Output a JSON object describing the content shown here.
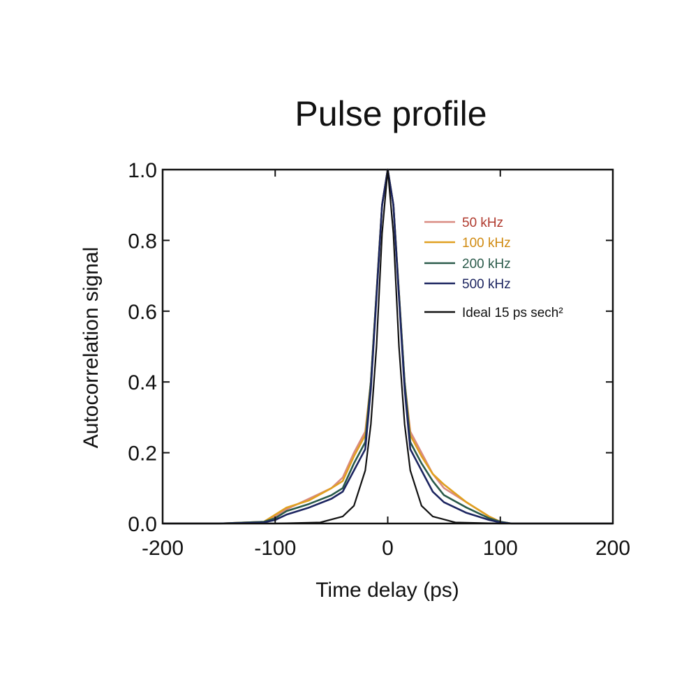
{
  "chart_data": {
    "type": "line",
    "title": "Pulse profile",
    "xlabel": "Time delay (ps)",
    "ylabel": "Autocorrelation signal",
    "xlim": [
      -200,
      200
    ],
    "ylim": [
      0,
      1.0
    ],
    "xticks": [
      -200,
      -100,
      0,
      100,
      200
    ],
    "xtick_labels": [
      "-200",
      "-100",
      "0",
      "100",
      "200"
    ],
    "yticks": [
      0,
      0.2,
      0.4,
      0.6,
      0.8,
      1.0
    ],
    "ytick_labels": [
      "0.0",
      "0.2",
      "0.4",
      "0.6",
      "0.8",
      "1.0"
    ],
    "grid": false,
    "legend_position": "top-right",
    "series": [
      {
        "name": "50 kHz",
        "color": "#d98a80",
        "label_color": "#b03a2e",
        "x": [
          -200,
          -150,
          -110,
          -100,
          -90,
          -70,
          -50,
          -40,
          -30,
          -25,
          -20,
          -15,
          -10,
          -5,
          0,
          5,
          10,
          15,
          20,
          25,
          30,
          40,
          50,
          70,
          90,
          100,
          110,
          150,
          200
        ],
        "y": [
          0.0,
          0.0,
          0.005,
          0.02,
          0.04,
          0.07,
          0.1,
          0.13,
          0.2,
          0.23,
          0.26,
          0.4,
          0.65,
          0.9,
          1.0,
          0.9,
          0.65,
          0.4,
          0.26,
          0.23,
          0.2,
          0.14,
          0.1,
          0.06,
          0.02,
          0.005,
          0.0,
          0.0,
          0.0
        ]
      },
      {
        "name": "100 kHz",
        "color": "#e0a020",
        "label_color": "#d08a10",
        "x": [
          -200,
          -150,
          -110,
          -100,
          -90,
          -70,
          -50,
          -40,
          -30,
          -25,
          -20,
          -15,
          -10,
          -5,
          0,
          5,
          10,
          15,
          20,
          25,
          30,
          40,
          50,
          70,
          90,
          100,
          110,
          150,
          200
        ],
        "y": [
          0.0,
          0.0,
          0.005,
          0.025,
          0.045,
          0.065,
          0.1,
          0.12,
          0.19,
          0.22,
          0.25,
          0.4,
          0.65,
          0.9,
          1.0,
          0.9,
          0.65,
          0.4,
          0.25,
          0.22,
          0.19,
          0.14,
          0.11,
          0.06,
          0.02,
          0.005,
          0.0,
          0.0,
          0.0
        ]
      },
      {
        "name": "200 kHz",
        "color": "#2a5a4a",
        "label_color": "#2a5a4a",
        "x": [
          -200,
          -150,
          -110,
          -100,
          -90,
          -70,
          -50,
          -40,
          -30,
          -25,
          -20,
          -15,
          -10,
          -5,
          0,
          5,
          10,
          15,
          20,
          25,
          30,
          40,
          50,
          70,
          90,
          100,
          110,
          150,
          200
        ],
        "y": [
          0.0,
          0.0,
          0.005,
          0.015,
          0.035,
          0.055,
          0.08,
          0.1,
          0.17,
          0.2,
          0.23,
          0.4,
          0.65,
          0.9,
          1.0,
          0.9,
          0.65,
          0.4,
          0.23,
          0.2,
          0.17,
          0.12,
          0.08,
          0.045,
          0.015,
          0.005,
          0.0,
          0.0,
          0.0
        ]
      },
      {
        "name": "500 kHz",
        "color": "#1c2560",
        "label_color": "#1c2560",
        "x": [
          -200,
          -150,
          -110,
          -100,
          -90,
          -70,
          -50,
          -40,
          -30,
          -25,
          -20,
          -15,
          -10,
          -5,
          0,
          5,
          10,
          15,
          20,
          25,
          30,
          40,
          50,
          70,
          90,
          100,
          110,
          150,
          200
        ],
        "y": [
          0.0,
          0.0,
          0.003,
          0.01,
          0.025,
          0.045,
          0.07,
          0.09,
          0.15,
          0.18,
          0.21,
          0.38,
          0.64,
          0.9,
          1.0,
          0.9,
          0.64,
          0.38,
          0.21,
          0.18,
          0.15,
          0.09,
          0.06,
          0.03,
          0.01,
          0.003,
          0.0,
          0.0,
          0.0
        ]
      },
      {
        "name": "Ideal 15 ps sech²",
        "color": "#111111",
        "label_color": "#111111",
        "x": [
          -200,
          -100,
          -60,
          -40,
          -30,
          -20,
          -15,
          -10,
          -5,
          0,
          5,
          10,
          15,
          20,
          30,
          40,
          60,
          100,
          200
        ],
        "y": [
          0.0,
          0.0,
          0.003,
          0.02,
          0.05,
          0.15,
          0.28,
          0.5,
          0.82,
          1.0,
          0.82,
          0.5,
          0.28,
          0.15,
          0.05,
          0.02,
          0.003,
          0.0,
          0.0
        ]
      }
    ]
  }
}
